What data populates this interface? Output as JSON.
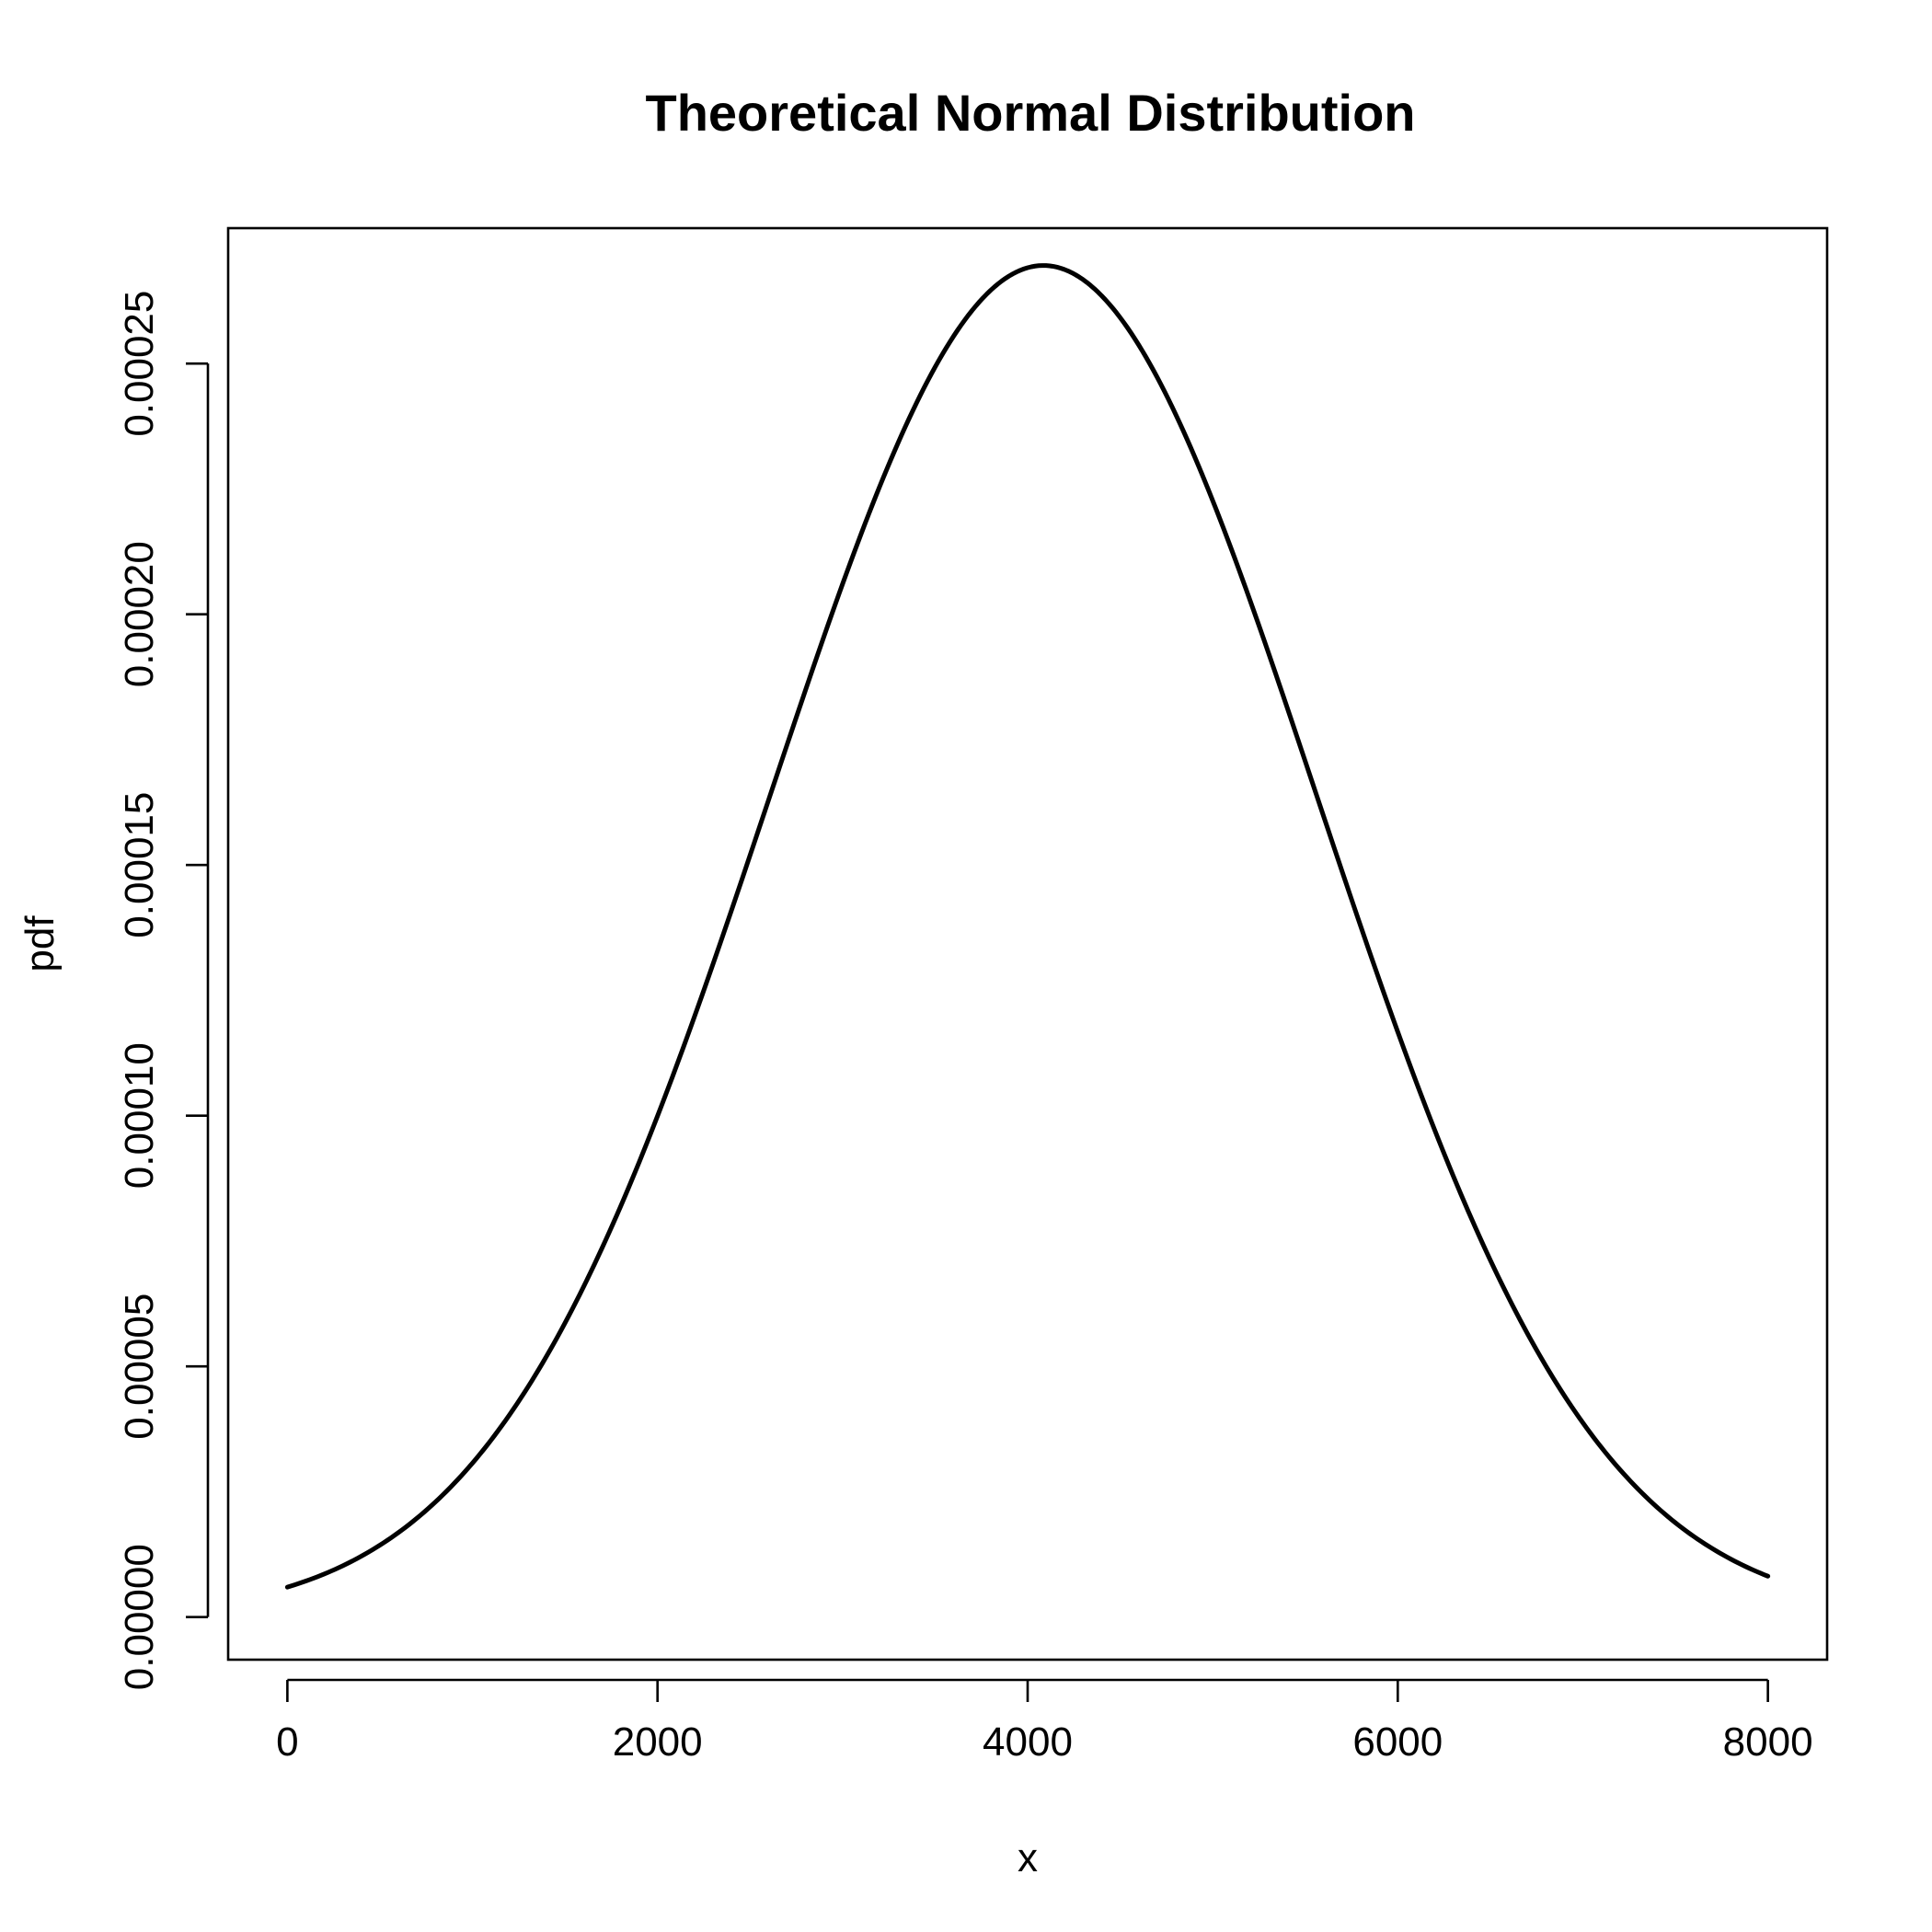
{
  "chart_data": {
    "type": "line",
    "title": "Theoretical Normal Distribution",
    "xlabel": "x",
    "ylabel": "pdf",
    "xlim": [
      -320,
      8320
    ],
    "ylim": [
      -8.5e-06,
      0.000277
    ],
    "x_ticks": [
      0,
      2000,
      4000,
      6000,
      8000
    ],
    "x_tick_labels": [
      "0",
      "2000",
      "4000",
      "6000",
      "8000"
    ],
    "y_ticks": [
      0,
      5e-05,
      0.0001,
      0.00015,
      0.0002,
      0.00025
    ],
    "y_tick_labels": [
      "0.00000",
      "0.00005",
      "0.00010",
      "0.00015",
      "0.00020",
      "0.00025"
    ],
    "grid": false,
    "legend": "none",
    "line_color": "#000000",
    "series": [
      {
        "distribution": "normal",
        "mean": 4085,
        "sd": 1480,
        "x_range": [
          0,
          8000
        ],
        "x": [
          0,
          500,
          1000,
          1500,
          2000,
          2500,
          3000,
          3500,
          4000,
          4085,
          4500,
          5000,
          5500,
          6000,
          6500,
          7000,
          7500,
          8000
        ],
        "values": [
          6e-06,
          1.43e-05,
          3.05e-05,
          5.74e-05,
          9.7e-05,
          0.0001456,
          0.0001968,
          0.0002415,
          0.0002694,
          0.0002696,
          0.0002596,
          0.0002308,
          0.0001855,
          0.0001346,
          8.8e-05,
          5.2e-05,
          2.77e-05,
          8.3e-06
        ]
      }
    ]
  }
}
